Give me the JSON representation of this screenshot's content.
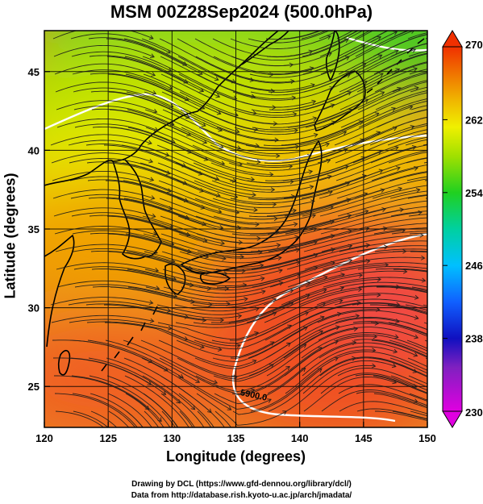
{
  "title": "MSM 00Z28Sep2024 (500.0hPa)",
  "xlabel": "Longitude (degrees)",
  "ylabel": "Latitude  (degrees)",
  "credits": [
    "Drawing by DCL (https://www.gfd-dennou.org/library/dcl/)",
    "Data from http://database.rish.kyoto-u.ac.jp/arch/jmadata/"
  ],
  "chart_data": {
    "type": "heatmap",
    "x_range": [
      120,
      150
    ],
    "y_range": [
      22.4,
      47.6
    ],
    "x_ticks": [
      "120",
      "125",
      "130",
      "135",
      "140",
      "145",
      "150"
    ],
    "y_ticks": [
      "25",
      "30",
      "35",
      "40",
      "45"
    ],
    "colorbar": {
      "min": 230,
      "max": 270,
      "ticks": [
        "230",
        "238",
        "246",
        "254",
        "262",
        "270"
      ],
      "colors": [
        "#e000e0",
        "#1010c0",
        "#00c0ff",
        "#00d0a0",
        "#20d020",
        "#a0e000",
        "#f0f000",
        "#f0b000",
        "#f07000",
        "#f03000"
      ],
      "extends": "both"
    },
    "contour_label": "5900.0",
    "grid": true,
    "colors": {
      "coastline": "#000000",
      "streamline": "#000000",
      "contour": "#ffffff"
    }
  }
}
